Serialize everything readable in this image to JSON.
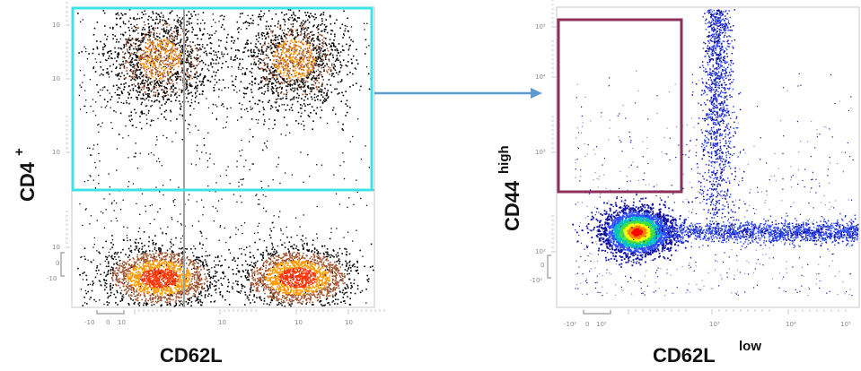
{
  "chart_data": [
    {
      "type": "scatter",
      "title": "",
      "xlabel": "CD62L",
      "ylabel": {
        "base": "CD4",
        "sup": "+"
      },
      "x_scale": "biexponential",
      "y_scale": "biexponential",
      "x_ticks": [
        "-10",
        "0",
        "10",
        "10",
        "10",
        "10"
      ],
      "y_ticks": [
        "10",
        "10",
        "10",
        "10",
        "0",
        "-10"
      ],
      "gate": {
        "shape": "rectangle",
        "color": "#3fe0e6",
        "x_range": [
          -10,
          100000
        ],
        "y_range": [
          3000,
          100000
        ]
      },
      "quadrant_divider_color": "#a0a0a0",
      "populations": [
        {
          "name": "",
          "x_center": 120,
          "y_center": 20000,
          "density": "medium"
        },
        {
          "name": "",
          "x_center": 8000,
          "y_center": 20000,
          "density": "medium"
        },
        {
          "name": "",
          "x_center": 120,
          "y_center": 10,
          "density": "high"
        },
        {
          "name": "",
          "x_center": 9000,
          "y_center": 10,
          "density": "high"
        }
      ],
      "colormap": [
        "#000000",
        "#a0522d",
        "#ff9900",
        "#ff3300"
      ],
      "grid": false,
      "legend": "none"
    },
    {
      "type": "scatter",
      "title": "",
      "xlabel": {
        "base": "CD62L",
        "sup": "low"
      },
      "ylabel": {
        "base": "CD44",
        "sup": "high"
      },
      "x_scale": "biexponential",
      "y_scale": "biexponential",
      "x_ticks": [
        "-10²",
        "0",
        "10²",
        "10³",
        "10⁴",
        "10⁵"
      ],
      "y_ticks": [
        "10⁵",
        "10⁴",
        "10³",
        "10²",
        "0",
        "-10²"
      ],
      "gate": {
        "shape": "rectangle",
        "color": "#8b2f5b",
        "x_range": [
          -300,
          3000
        ],
        "y_range": [
          1000,
          100000
        ]
      },
      "populations": [
        {
          "name": "",
          "x_center": 10,
          "y_center": 5,
          "density": "very high"
        },
        {
          "name": "",
          "x_center": 600,
          "y_center": 8000,
          "density": "low"
        },
        {
          "name": "",
          "x_center": 30000,
          "y_center": 5,
          "density": "medium"
        }
      ],
      "colormap": [
        "#1010a0",
        "#3050ff",
        "#00c0c0",
        "#40e040",
        "#ffff00",
        "#ff8000",
        "#ff0000"
      ],
      "grid": false,
      "legend": "none"
    }
  ],
  "connector": {
    "color": "#5b9bd5",
    "from": "panel-1-gate",
    "to": "panel-2"
  }
}
